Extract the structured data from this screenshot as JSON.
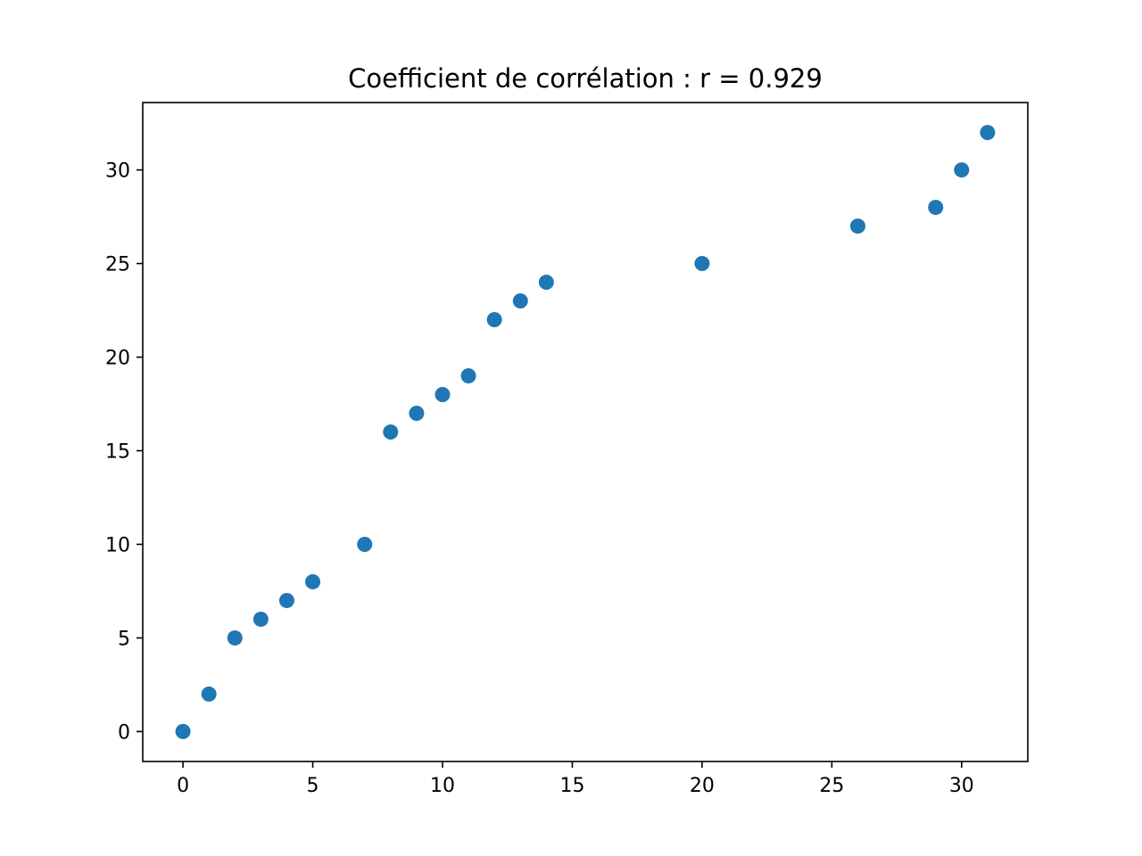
{
  "chart_data": {
    "type": "scatter",
    "title": "Coefficient de corrélation : r = 0.929",
    "xlabel": "",
    "ylabel": "",
    "xlim": [
      -1.55,
      32.55
    ],
    "ylim": [
      -1.6,
      33.6
    ],
    "xticks": [
      0,
      5,
      10,
      15,
      20,
      25,
      30
    ],
    "yticks": [
      0,
      5,
      10,
      15,
      20,
      25,
      30
    ],
    "grid": false,
    "marker_color": "#1f77b4",
    "series": [
      {
        "x": [
          0,
          1,
          2,
          3,
          4,
          5,
          7,
          8,
          9,
          10,
          11,
          12,
          13,
          14,
          20,
          26,
          29,
          30,
          31
        ],
        "y": [
          0,
          2,
          5,
          6,
          7,
          8,
          10,
          16,
          17,
          18,
          19,
          22,
          23,
          24,
          25,
          27,
          28,
          30,
          32
        ]
      }
    ]
  }
}
